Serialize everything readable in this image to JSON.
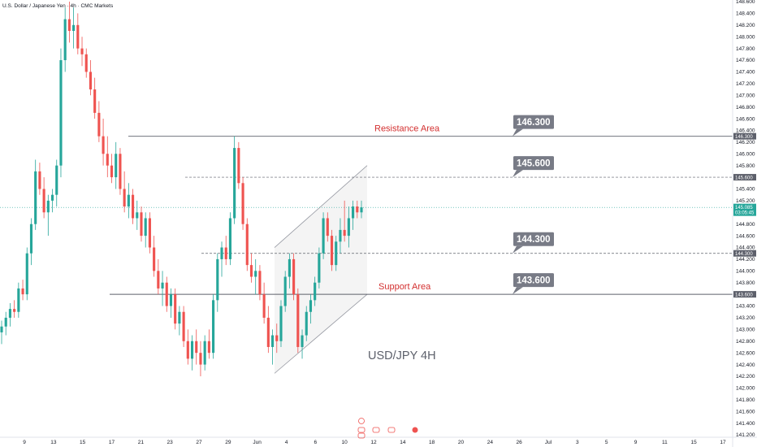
{
  "header": {
    "symbol_title": "U.S. Dollar / Japanese Yen · 4h · CMC Markets"
  },
  "watermark": "USD/JPY 4H",
  "colors": {
    "up": "#26a69a",
    "down": "#ef5350",
    "level_line": "#5d606b",
    "callout_bg": "#787b86",
    "area_text": "#d32f2f",
    "channel_fill": "#e6e6e6",
    "current_price": "#26a69a"
  },
  "chart_data": {
    "type": "candlestick",
    "title": "",
    "ylim": [
      141.2,
      148.6
    ],
    "y_ticks": [
      "148.600",
      "148.400",
      "148.200",
      "148.000",
      "147.800",
      "147.600",
      "147.400",
      "147.200",
      "147.000",
      "146.800",
      "146.600",
      "146.400",
      "146.200",
      "146.000",
      "145.800",
      "145.600",
      "145.400",
      "145.200",
      "145.000",
      "144.800",
      "144.600",
      "144.400",
      "144.200",
      "144.000",
      "143.800",
      "143.600",
      "143.400",
      "143.200",
      "143.000",
      "142.800",
      "142.600",
      "142.400",
      "142.200",
      "142.000",
      "141.800",
      "141.600",
      "141.400",
      "141.200"
    ],
    "x_tick_labels": [
      "9",
      "13",
      "15",
      "17",
      "21",
      "23",
      "27",
      "29",
      "Jun",
      "4",
      "6",
      "10",
      "12",
      "14",
      "18",
      "20",
      "24",
      "26",
      "Jul",
      "3",
      "5",
      "9",
      "11",
      "15",
      "17"
    ],
    "levels": [
      {
        "value": 146.3,
        "label": "146.300",
        "style": "solid",
        "area": "Resistance Area"
      },
      {
        "value": 145.6,
        "label": "145.600",
        "style": "dashed",
        "area": ""
      },
      {
        "value": 144.3,
        "label": "144.300",
        "style": "dashed",
        "area": ""
      },
      {
        "value": 143.6,
        "label": "143.600",
        "style": "solid",
        "area": "Support Area"
      }
    ],
    "price_tags": [
      "146.300",
      "145.600",
      "144.300",
      "143.600"
    ],
    "current_price": {
      "value": 145.085,
      "label": "145.085",
      "countdown": "03:05:45"
    },
    "channel": {
      "lower_start": 142.25,
      "lower_end": 143.6,
      "upper_start": 144.4,
      "upper_end": 145.8
    },
    "candles": [
      {
        "o": 142.95,
        "h": 143.15,
        "l": 142.75,
        "c": 143.05
      },
      {
        "o": 143.05,
        "h": 143.3,
        "l": 142.9,
        "c": 143.2
      },
      {
        "o": 143.2,
        "h": 143.45,
        "l": 143.05,
        "c": 143.35
      },
      {
        "o": 143.35,
        "h": 143.5,
        "l": 143.2,
        "c": 143.3
      },
      {
        "o": 143.3,
        "h": 143.8,
        "l": 143.2,
        "c": 143.7
      },
      {
        "o": 143.7,
        "h": 143.85,
        "l": 143.5,
        "c": 143.6
      },
      {
        "o": 143.6,
        "h": 144.4,
        "l": 143.5,
        "c": 144.3
      },
      {
        "o": 144.3,
        "h": 144.9,
        "l": 144.1,
        "c": 144.8
      },
      {
        "o": 144.8,
        "h": 145.9,
        "l": 144.7,
        "c": 145.7
      },
      {
        "o": 145.7,
        "h": 145.85,
        "l": 145.3,
        "c": 145.4
      },
      {
        "o": 145.4,
        "h": 145.6,
        "l": 144.9,
        "c": 145.0
      },
      {
        "o": 145.0,
        "h": 145.3,
        "l": 144.6,
        "c": 145.2
      },
      {
        "o": 145.2,
        "h": 145.4,
        "l": 145.0,
        "c": 145.3
      },
      {
        "o": 145.3,
        "h": 145.9,
        "l": 145.1,
        "c": 145.8
      },
      {
        "o": 145.8,
        "h": 147.8,
        "l": 145.6,
        "c": 147.6
      },
      {
        "o": 147.6,
        "h": 148.5,
        "l": 147.4,
        "c": 148.3
      },
      {
        "o": 148.3,
        "h": 148.6,
        "l": 147.9,
        "c": 148.1
      },
      {
        "o": 148.1,
        "h": 148.5,
        "l": 147.8,
        "c": 148.2
      },
      {
        "o": 148.2,
        "h": 148.4,
        "l": 147.7,
        "c": 147.8
      },
      {
        "o": 147.8,
        "h": 148.0,
        "l": 147.5,
        "c": 147.7
      },
      {
        "o": 147.7,
        "h": 147.8,
        "l": 147.3,
        "c": 147.4
      },
      {
        "o": 147.4,
        "h": 147.6,
        "l": 147.0,
        "c": 147.1
      },
      {
        "o": 147.1,
        "h": 147.3,
        "l": 146.6,
        "c": 146.7
      },
      {
        "o": 146.7,
        "h": 146.9,
        "l": 146.2,
        "c": 146.3
      },
      {
        "o": 146.3,
        "h": 146.6,
        "l": 145.8,
        "c": 146.0
      },
      {
        "o": 146.0,
        "h": 146.3,
        "l": 145.6,
        "c": 145.8
      },
      {
        "o": 145.8,
        "h": 146.0,
        "l": 145.5,
        "c": 145.6
      },
      {
        "o": 145.6,
        "h": 146.2,
        "l": 145.4,
        "c": 146.0
      },
      {
        "o": 146.0,
        "h": 146.1,
        "l": 145.3,
        "c": 145.4
      },
      {
        "o": 145.4,
        "h": 145.7,
        "l": 145.0,
        "c": 145.1
      },
      {
        "o": 145.1,
        "h": 145.5,
        "l": 144.9,
        "c": 145.3
      },
      {
        "o": 145.3,
        "h": 145.4,
        "l": 144.8,
        "c": 144.9
      },
      {
        "o": 144.9,
        "h": 145.2,
        "l": 144.7,
        "c": 145.0
      },
      {
        "o": 145.0,
        "h": 145.1,
        "l": 144.5,
        "c": 144.6
      },
      {
        "o": 144.6,
        "h": 145.0,
        "l": 144.4,
        "c": 144.9
      },
      {
        "o": 144.9,
        "h": 145.0,
        "l": 144.3,
        "c": 144.4
      },
      {
        "o": 144.4,
        "h": 144.6,
        "l": 143.9,
        "c": 144.0
      },
      {
        "o": 144.0,
        "h": 144.2,
        "l": 143.6,
        "c": 143.7
      },
      {
        "o": 143.7,
        "h": 144.0,
        "l": 143.4,
        "c": 143.8
      },
      {
        "o": 143.8,
        "h": 143.9,
        "l": 143.3,
        "c": 143.4
      },
      {
        "o": 143.4,
        "h": 143.7,
        "l": 143.2,
        "c": 143.6
      },
      {
        "o": 143.6,
        "h": 143.7,
        "l": 143.0,
        "c": 143.1
      },
      {
        "o": 143.1,
        "h": 143.4,
        "l": 142.9,
        "c": 143.3
      },
      {
        "o": 143.3,
        "h": 143.4,
        "l": 142.7,
        "c": 142.8
      },
      {
        "o": 142.8,
        "h": 143.0,
        "l": 142.4,
        "c": 142.5
      },
      {
        "o": 142.5,
        "h": 142.9,
        "l": 142.3,
        "c": 142.8
      },
      {
        "o": 142.8,
        "h": 143.0,
        "l": 142.4,
        "c": 142.6
      },
      {
        "o": 142.6,
        "h": 142.8,
        "l": 142.2,
        "c": 142.4
      },
      {
        "o": 142.4,
        "h": 142.9,
        "l": 142.3,
        "c": 142.8
      },
      {
        "o": 142.8,
        "h": 143.0,
        "l": 142.5,
        "c": 142.6
      },
      {
        "o": 142.6,
        "h": 143.6,
        "l": 142.5,
        "c": 143.5
      },
      {
        "o": 143.5,
        "h": 144.3,
        "l": 143.3,
        "c": 144.2
      },
      {
        "o": 144.2,
        "h": 144.5,
        "l": 143.9,
        "c": 144.4
      },
      {
        "o": 144.4,
        "h": 144.6,
        "l": 144.1,
        "c": 144.2
      },
      {
        "o": 144.2,
        "h": 145.0,
        "l": 144.1,
        "c": 144.9
      },
      {
        "o": 144.9,
        "h": 146.3,
        "l": 144.8,
        "c": 146.1
      },
      {
        "o": 146.1,
        "h": 146.2,
        "l": 145.4,
        "c": 145.5
      },
      {
        "o": 145.5,
        "h": 145.6,
        "l": 144.7,
        "c": 144.8
      },
      {
        "o": 144.8,
        "h": 144.9,
        "l": 144.0,
        "c": 144.1
      },
      {
        "o": 144.1,
        "h": 144.3,
        "l": 143.8,
        "c": 143.9
      },
      {
        "o": 143.9,
        "h": 144.2,
        "l": 143.6,
        "c": 144.0
      },
      {
        "o": 144.0,
        "h": 144.1,
        "l": 143.5,
        "c": 143.6
      },
      {
        "o": 143.6,
        "h": 143.8,
        "l": 143.1,
        "c": 143.2
      },
      {
        "o": 143.2,
        "h": 143.4,
        "l": 142.6,
        "c": 142.7
      },
      {
        "o": 142.7,
        "h": 143.0,
        "l": 142.4,
        "c": 142.9
      },
      {
        "o": 142.9,
        "h": 143.1,
        "l": 142.6,
        "c": 142.8
      },
      {
        "o": 142.8,
        "h": 143.5,
        "l": 142.7,
        "c": 143.4
      },
      {
        "o": 143.4,
        "h": 144.0,
        "l": 143.3,
        "c": 143.9
      },
      {
        "o": 143.9,
        "h": 144.3,
        "l": 143.7,
        "c": 144.2
      },
      {
        "o": 144.2,
        "h": 144.3,
        "l": 143.5,
        "c": 143.6
      },
      {
        "o": 143.6,
        "h": 143.7,
        "l": 142.6,
        "c": 142.7
      },
      {
        "o": 142.7,
        "h": 143.0,
        "l": 142.5,
        "c": 142.9
      },
      {
        "o": 142.9,
        "h": 143.4,
        "l": 142.8,
        "c": 143.3
      },
      {
        "o": 143.3,
        "h": 143.6,
        "l": 143.1,
        "c": 143.5
      },
      {
        "o": 143.5,
        "h": 143.9,
        "l": 143.4,
        "c": 143.8
      },
      {
        "o": 143.8,
        "h": 144.4,
        "l": 143.7,
        "c": 144.3
      },
      {
        "o": 144.3,
        "h": 145.0,
        "l": 144.2,
        "c": 144.9
      },
      {
        "o": 144.9,
        "h": 145.0,
        "l": 144.5,
        "c": 144.6
      },
      {
        "o": 144.6,
        "h": 144.7,
        "l": 144.0,
        "c": 144.1
      },
      {
        "o": 144.1,
        "h": 144.6,
        "l": 144.0,
        "c": 144.5
      },
      {
        "o": 144.5,
        "h": 144.9,
        "l": 144.3,
        "c": 144.7
      },
      {
        "o": 144.7,
        "h": 145.2,
        "l": 144.5,
        "c": 144.6
      },
      {
        "o": 144.6,
        "h": 145.1,
        "l": 144.4,
        "c": 144.9
      },
      {
        "o": 144.9,
        "h": 145.2,
        "l": 144.7,
        "c": 145.1
      },
      {
        "o": 145.1,
        "h": 145.2,
        "l": 144.9,
        "c": 145.0
      },
      {
        "o": 145.0,
        "h": 145.2,
        "l": 144.9,
        "c": 145.085
      }
    ]
  }
}
